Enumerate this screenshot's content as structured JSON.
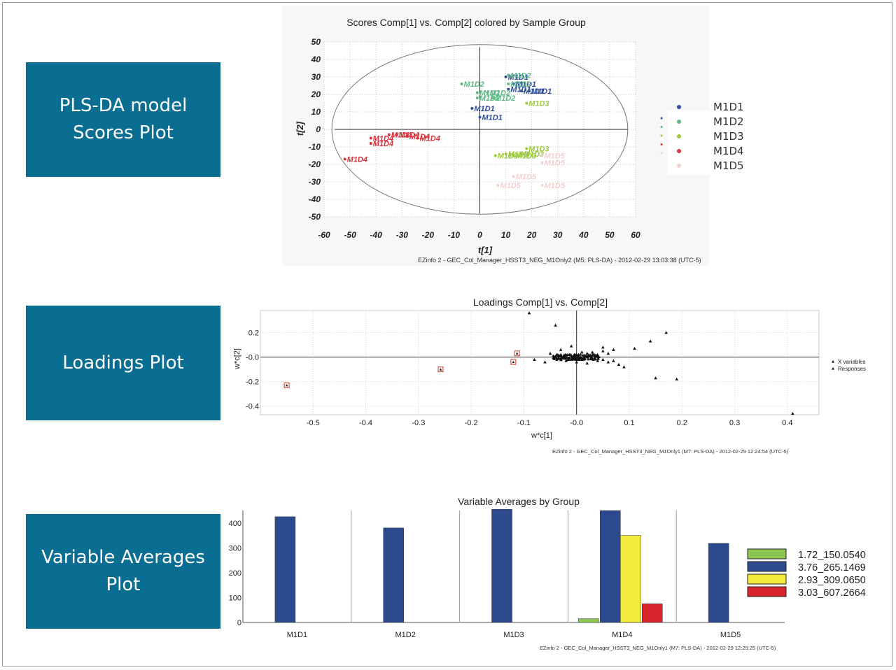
{
  "labels": {
    "scores": "PLS-DA model\nScores Plot",
    "loadings": "Loadings Plot",
    "averages": "Variable Averages\nPlot"
  },
  "colors": {
    "label_bg": "#0a6e92",
    "M1D1": "#2f4e9a",
    "M1D2": "#5fb885",
    "M1D3": "#9cc93a",
    "M1D4": "#d9323c",
    "M1D5": "#f2d2cf",
    "green": "#8cc653",
    "blue": "#2e4a8f",
    "yellow": "#f3ea3b",
    "red": "#d8222c"
  },
  "chart_data": [
    {
      "type": "scatter",
      "title": "Scores Comp[1] vs. Comp[2] colored by Sample Group",
      "xlabel": "t[1]",
      "ylabel": "t[2]",
      "xlim": [
        -60,
        60
      ],
      "ylim": [
        -50,
        50
      ],
      "xticks": [
        -60,
        -50,
        -40,
        -30,
        -20,
        -10,
        0,
        10,
        20,
        30,
        40,
        50,
        60
      ],
      "yticks": [
        50,
        40,
        30,
        20,
        10,
        0,
        -10,
        -20,
        -30,
        -40,
        -50
      ],
      "grid": true,
      "legend": "right",
      "footer": "EZinfo 2 - GEC_Col_Manager_HSST3_NEG_M1Only2 (M5: PLS-DA) - 2012-02-29 13:03:38 (UTC-5)",
      "series": [
        {
          "name": "M1D1",
          "points": [
            [
              10,
              30
            ],
            [
              13,
              26
            ],
            [
              16,
              22
            ],
            [
              19,
              22
            ],
            [
              11,
              23
            ],
            [
              -3,
              12
            ],
            [
              0,
              7
            ]
          ]
        },
        {
          "name": "M1D2",
          "points": [
            [
              -7,
              26
            ],
            [
              -1,
              21
            ],
            [
              3,
              21
            ],
            [
              11,
              31
            ],
            [
              11,
              26
            ],
            [
              -1,
              18
            ],
            [
              5,
              18
            ]
          ]
        },
        {
          "name": "M1D3",
          "points": [
            [
              18,
              15
            ],
            [
              18,
              -11
            ],
            [
              10,
              -14
            ],
            [
              6,
              -15
            ],
            [
              13,
              -15
            ],
            [
              16,
              -14
            ]
          ]
        },
        {
          "name": "M1D4",
          "points": [
            [
              -52,
              -17
            ],
            [
              -42,
              -5
            ],
            [
              -42,
              -8
            ],
            [
              -35,
              -3
            ],
            [
              -32,
              -3
            ],
            [
              -28,
              -4
            ],
            [
              -24,
              -5
            ]
          ]
        },
        {
          "name": "M1D5",
          "points": [
            [
              24,
              -15
            ],
            [
              24,
              -19
            ],
            [
              13,
              -27
            ],
            [
              7,
              -32
            ],
            [
              24,
              -32
            ]
          ]
        }
      ],
      "point_labels": [
        "M1D1",
        "M1D2",
        "M1D3",
        "M1D4",
        "M1D5"
      ]
    },
    {
      "type": "scatter",
      "title": "Loadings Comp[1] vs. Comp[2]",
      "xlabel": "w*c[1]",
      "ylabel": "w*c[2]",
      "xlim": [
        -0.6,
        0.46
      ],
      "ylim": [
        -0.47,
        0.38
      ],
      "xticks": [
        "-0.5",
        "-0.4",
        "-0.3",
        "-0.2",
        "-0.1",
        "-0.0",
        "0.1",
        "0.2",
        "0.3",
        "0.4"
      ],
      "yticks": [
        "0.2",
        "-0.0",
        "-0.2",
        "-0.4"
      ],
      "grid": true,
      "legend": "right",
      "legend_items": [
        "X variables",
        "Responses"
      ],
      "footer": "EZinfo 2 - GEC_Col_Manager_HSST3_NEG_M1Only1 (M7: PLS-DA) - 2012-02-29 12:24:54 (UTC-5)",
      "responses": [
        [
          -0.55,
          -0.23
        ],
        [
          -0.258,
          -0.1
        ],
        [
          -0.113,
          0.03
        ],
        [
          -0.12,
          -0.04
        ]
      ],
      "x_variables": [
        [
          -0.09,
          0.36
        ],
        [
          -0.04,
          0.26
        ],
        [
          0.17,
          0.2
        ],
        [
          0.14,
          0.13
        ],
        [
          0.15,
          -0.17
        ],
        [
          0.19,
          -0.18
        ],
        [
          0.41,
          -0.46
        ],
        [
          0.11,
          0.07
        ],
        [
          0.09,
          -0.08
        ],
        [
          -0.06,
          -0.04
        ],
        [
          -0.08,
          -0.02
        ],
        [
          -0.03,
          0.06
        ],
        [
          -0.01,
          0.09
        ],
        [
          0.05,
          0.08
        ],
        [
          0.07,
          0.06
        ],
        [
          0.08,
          -0.06
        ],
        [
          -0.05,
          0.03
        ],
        [
          0.06,
          -0.04
        ],
        [
          0.03,
          0.04
        ],
        [
          0.02,
          -0.05
        ],
        [
          -0.02,
          -0.03
        ],
        [
          0.04,
          0.01
        ],
        [
          0.0,
          0.02
        ],
        [
          0.01,
          -0.02
        ],
        [
          -0.01,
          0.01
        ],
        [
          0.02,
          0.0
        ],
        [
          -0.03,
          -0.01
        ],
        [
          0.05,
          -0.02
        ],
        [
          0.03,
          0.02
        ],
        [
          0.01,
          0.04
        ],
        [
          0.04,
          -0.03
        ],
        [
          -0.02,
          0.02
        ],
        [
          0.06,
          0.03
        ],
        [
          0.0,
          -0.04
        ],
        [
          0.03,
          -0.01
        ],
        [
          0.07,
          -0.03
        ],
        [
          -0.04,
          0.0
        ],
        [
          0.02,
          0.03
        ],
        [
          0.05,
          0.05
        ],
        [
          -0.01,
          -0.02
        ]
      ]
    },
    {
      "type": "bar",
      "title": "Variable Averages by Group",
      "categories": [
        "M1D1",
        "M1D2",
        "M1D3",
        "M1D4",
        "M1D5"
      ],
      "ylim": [
        0,
        450
      ],
      "yticks": [
        0,
        100,
        200,
        300,
        400
      ],
      "legend": "right",
      "footer": "EZinfo 2 - GEC_Col_Manager_HSST3_NEG_M1Only1 (M7: PLS-DA) - 2012-02-29 12:25:25 (UTC-5)",
      "series": [
        {
          "name": "1.72_150.0540",
          "values": [
            0,
            0,
            0,
            15,
            0
          ]
        },
        {
          "name": "3.76_265.1469",
          "values": [
            425,
            380,
            455,
            450,
            318
          ]
        },
        {
          "name": "2.93_309.0650",
          "values": [
            0,
            0,
            0,
            350,
            0
          ]
        },
        {
          "name": "3.03_607.2664",
          "values": [
            0,
            0,
            0,
            75,
            0
          ]
        }
      ]
    }
  ]
}
